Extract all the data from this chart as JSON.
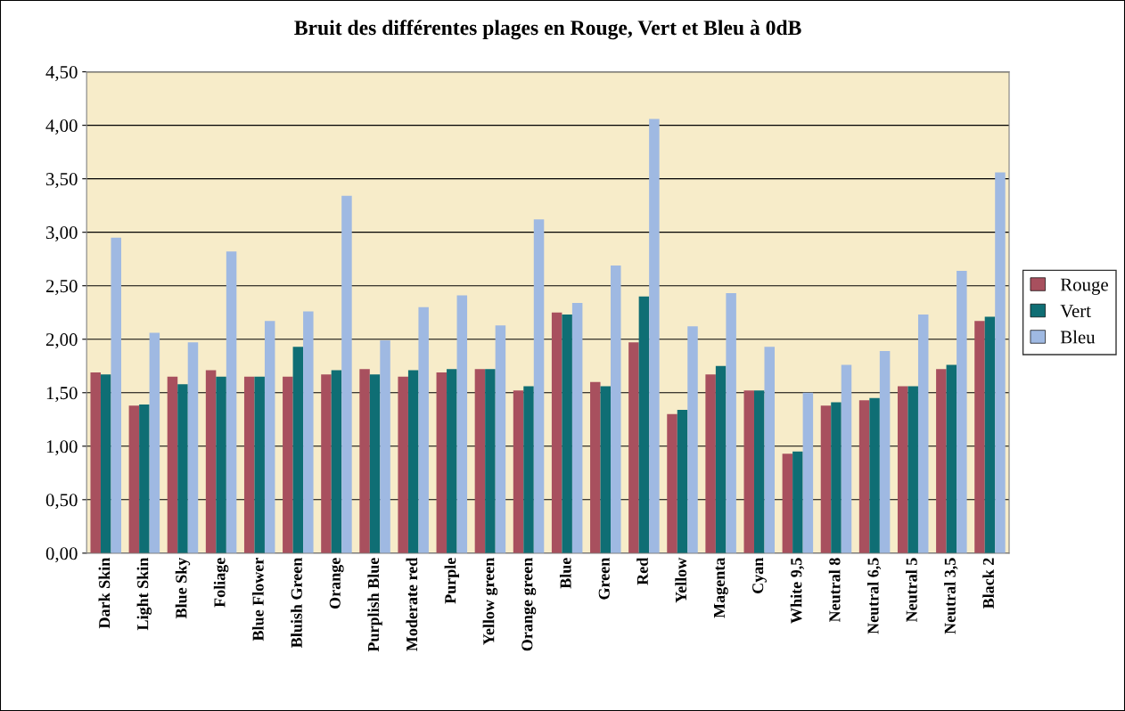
{
  "chart_data": {
    "type": "bar",
    "title": "Bruit des différentes plages en Rouge, Vert et Bleu à 0dB",
    "categories": [
      "Dark Skin",
      "Light Skin",
      "Blue Sky",
      "Foliage",
      "Blue Flower",
      "Bluish Green",
      "Orange",
      "Purplish Blue",
      "Moderate red",
      "Purple",
      "Yellow green",
      "Orange green",
      "Blue",
      "Green",
      "Red",
      "Yellow",
      "Magenta",
      "Cyan",
      "White 9,5",
      "Neutral 8",
      "Neutral 6,5",
      "Neutral 5",
      "Neutral 3,5",
      "Black 2"
    ],
    "series": [
      {
        "name": "Rouge",
        "color": "#a8505e",
        "values": [
          1.69,
          1.38,
          1.65,
          1.71,
          1.65,
          1.65,
          1.67,
          1.72,
          1.65,
          1.69,
          1.72,
          1.52,
          2.25,
          1.6,
          1.97,
          1.3,
          1.67,
          1.52,
          0.93,
          1.38,
          1.43,
          1.56,
          1.72,
          2.17
        ]
      },
      {
        "name": "Vert",
        "color": "#0f6e74",
        "values": [
          1.67,
          1.39,
          1.58,
          1.65,
          1.65,
          1.93,
          1.71,
          1.67,
          1.71,
          1.72,
          1.72,
          1.56,
          2.23,
          1.56,
          2.4,
          1.34,
          1.75,
          1.52,
          0.95,
          1.41,
          1.45,
          1.56,
          1.76,
          2.21
        ]
      },
      {
        "name": "Bleu",
        "color": "#9fb9e2",
        "values": [
          2.95,
          2.06,
          1.97,
          2.82,
          2.17,
          2.26,
          3.34,
          1.99,
          2.3,
          2.41,
          2.13,
          3.12,
          2.34,
          2.69,
          4.06,
          2.12,
          2.43,
          1.93,
          1.5,
          1.76,
          1.89,
          2.23,
          2.64,
          3.56
        ]
      }
    ],
    "ylim": [
      0,
      4.5
    ],
    "yticks": [
      {
        "value": 0,
        "label": "0,00"
      },
      {
        "value": 0.5,
        "label": "0,50"
      },
      {
        "value": 1,
        "label": "1,00"
      },
      {
        "value": 1.5,
        "label": "1,50"
      },
      {
        "value": 2,
        "label": "2,00"
      },
      {
        "value": 2.5,
        "label": "2,50"
      },
      {
        "value": 3,
        "label": "3,00"
      },
      {
        "value": 3.5,
        "label": "3,50"
      },
      {
        "value": 4,
        "label": "4,00"
      },
      {
        "value": 4.5,
        "label": "4,50"
      }
    ],
    "grid": "y",
    "legend": "right"
  }
}
